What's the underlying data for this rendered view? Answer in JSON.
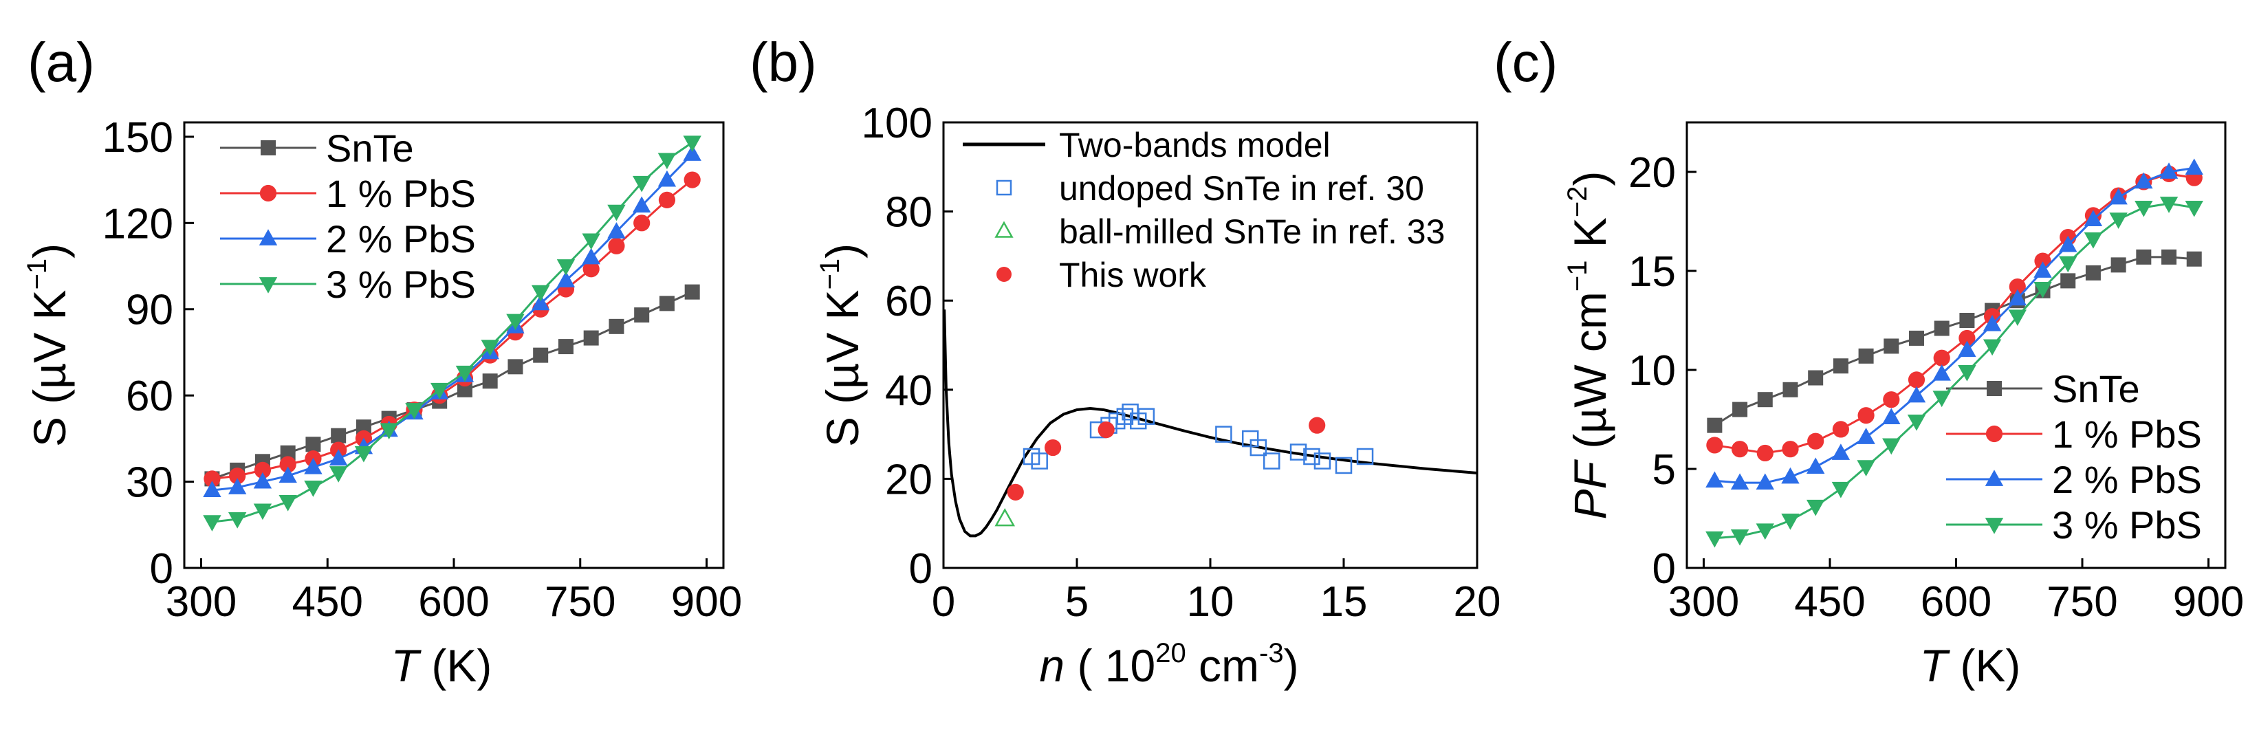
{
  "chart_data": [
    {
      "panel_label": "(a)",
      "type": "line",
      "xlabel_italic": "T",
      "xlabel_rest": " (K)",
      "ylabel_text": "S (µV K",
      "ylabel_sup": "−1",
      "ylabel_close": ")",
      "xlim": [
        280,
        920
      ],
      "ylim": [
        0,
        155
      ],
      "xticks": [
        300,
        450,
        600,
        750,
        900
      ],
      "yticks": [
        0,
        30,
        60,
        90,
        120,
        150
      ],
      "xtick_labels": [
        "300",
        "450",
        "600",
        "750",
        "900"
      ],
      "ytick_labels": [
        "0",
        "30",
        "60",
        "90",
        "120",
        "150"
      ],
      "legend_position": "top-left",
      "x": [
        313,
        343,
        373,
        403,
        433,
        463,
        493,
        523,
        553,
        583,
        613,
        643,
        673,
        703,
        733,
        763,
        793,
        823,
        853,
        883
      ],
      "series": [
        {
          "name": "SnTe",
          "marker": "square",
          "color": "#555555",
          "values": [
            31,
            34,
            37,
            40,
            43,
            46,
            49,
            52,
            55,
            58,
            62,
            65,
            70,
            74,
            77,
            80,
            84,
            88,
            92,
            96
          ]
        },
        {
          "name": "1 % PbS",
          "marker": "circle",
          "color": "#ee3333",
          "values": [
            31,
            32,
            34,
            36,
            38,
            41,
            45,
            50,
            55,
            60,
            66,
            74,
            82,
            90,
            97,
            104,
            112,
            120,
            128,
            135
          ]
        },
        {
          "name": "2 % PbS",
          "marker": "triangle-up",
          "color": "#2b6de8",
          "values": [
            27,
            28,
            30,
            32,
            35,
            38,
            42,
            48,
            54,
            61,
            67,
            75,
            84,
            92,
            100,
            108,
            117,
            126,
            135,
            144
          ]
        },
        {
          "name": "3 % PbS",
          "marker": "triangle-down",
          "color": "#2fb066",
          "values": [
            16,
            17,
            20,
            23,
            28,
            33,
            40,
            48,
            55,
            62,
            68,
            77,
            86,
            96,
            105,
            114,
            124,
            134,
            142,
            148
          ]
        }
      ]
    },
    {
      "panel_label": "(b)",
      "type": "scatter",
      "xlabel_italic": "n",
      "xlabel_rest": " (  10",
      "xlabel_sup1": "20",
      "xlabel_unit": " cm",
      "xlabel_sup2": "-3",
      "xlabel_close": ")",
      "ylabel_text": "S (µV K",
      "ylabel_sup": "−1",
      "ylabel_close": ")",
      "xlim": [
        0,
        20
      ],
      "ylim": [
        0,
        100
      ],
      "xticks": [
        0,
        5,
        10,
        15,
        20
      ],
      "yticks": [
        0,
        20,
        40,
        60,
        80,
        100
      ],
      "xtick_labels": [
        "0",
        "5",
        "10",
        "15",
        "20"
      ],
      "ytick_labels": [
        "0",
        "20",
        "40",
        "60",
        "80",
        "100"
      ],
      "legend_position": "top-right",
      "model": {
        "name": "Two-bands model",
        "color": "#000000",
        "x": [
          0.03,
          0.1,
          0.2,
          0.3,
          0.45,
          0.6,
          0.8,
          1.0,
          1.2,
          1.4,
          1.6,
          1.8,
          2.0,
          2.3,
          2.6,
          3.0,
          3.5,
          4.0,
          4.5,
          5.0,
          5.5,
          6.0,
          6.5,
          7.0,
          8.0,
          9.0,
          10.0,
          11.0,
          12.0,
          13.0,
          14.0,
          15.0,
          16.0,
          17.0,
          18.0,
          19.0,
          20.0
        ],
        "y": [
          58,
          40,
          28,
          21,
          15,
          11,
          8.2,
          7.2,
          7.2,
          7.8,
          9.2,
          11,
          13,
          16.5,
          20,
          24.5,
          29,
          32.5,
          34.5,
          35.5,
          35.8,
          35.5,
          34.8,
          34,
          32.4,
          30.8,
          29.3,
          28,
          26.9,
          25.9,
          25,
          24.2,
          23.5,
          22.9,
          22.3,
          21.8,
          21.3
        ]
      },
      "series": [
        {
          "name": "undoped SnTe in ref. 30",
          "marker": "square-open",
          "color": "#3a7ee0",
          "x": [
            3.3,
            3.6,
            5.8,
            6.2,
            6.5,
            6.8,
            7.0,
            7.3,
            7.6,
            10.5,
            11.5,
            11.8,
            12.3,
            13.3,
            13.8,
            14.2,
            15.0,
            15.8
          ],
          "y": [
            25,
            24,
            31,
            32,
            33,
            34,
            35,
            33,
            34,
            30,
            29,
            27,
            24,
            26,
            25,
            24,
            23,
            25
          ]
        },
        {
          "name": "ball-milled SnTe in ref. 33",
          "marker": "triangle-open",
          "color": "#3dbb5a",
          "x": [
            2.3
          ],
          "y": [
            11
          ]
        },
        {
          "name": "This work",
          "marker": "circle",
          "color": "#ee3333",
          "x": [
            2.7,
            4.1,
            6.1,
            14.0
          ],
          "y": [
            17,
            27,
            31,
            32
          ]
        }
      ]
    },
    {
      "panel_label": "(c)",
      "type": "line",
      "xlabel_italic": "T",
      "xlabel_rest": " (K)",
      "ylabel_italic": "PF",
      "ylabel_text": " (µW cm",
      "ylabel_sup": "−1",
      "ylabel_mid": " K",
      "ylabel_sup2": "−2",
      "ylabel_close": ")",
      "xlim": [
        280,
        920
      ],
      "ylim": [
        0,
        22.5
      ],
      "xticks": [
        300,
        450,
        600,
        750,
        900
      ],
      "yticks": [
        0,
        5,
        10,
        15,
        20
      ],
      "xtick_labels": [
        "300",
        "450",
        "600",
        "750",
        "900"
      ],
      "ytick_labels": [
        "0",
        "5",
        "10",
        "15",
        "20"
      ],
      "legend_position": "bottom-right",
      "x": [
        313,
        343,
        373,
        403,
        433,
        463,
        493,
        523,
        553,
        583,
        613,
        643,
        673,
        703,
        733,
        763,
        793,
        823,
        853,
        883
      ],
      "series": [
        {
          "name": "SnTe",
          "marker": "square",
          "color": "#555555",
          "values": [
            7.2,
            8.0,
            8.5,
            9.0,
            9.6,
            10.2,
            10.7,
            11.2,
            11.6,
            12.1,
            12.5,
            13.0,
            13.5,
            14.0,
            14.5,
            14.9,
            15.3,
            15.7,
            15.7,
            15.6
          ]
        },
        {
          "name": "1 % PbS",
          "marker": "circle",
          "color": "#ee3333",
          "values": [
            6.2,
            6.0,
            5.8,
            6.0,
            6.4,
            7.0,
            7.7,
            8.5,
            9.5,
            10.6,
            11.6,
            12.7,
            14.2,
            15.5,
            16.7,
            17.8,
            18.8,
            19.5,
            19.9,
            19.7
          ]
        },
        {
          "name": "2 % PbS",
          "marker": "triangle-up",
          "color": "#2b6de8",
          "values": [
            4.4,
            4.3,
            4.3,
            4.6,
            5.1,
            5.8,
            6.6,
            7.6,
            8.7,
            9.8,
            11.0,
            12.3,
            13.6,
            15.0,
            16.3,
            17.6,
            18.7,
            19.5,
            20.0,
            20.2
          ]
        },
        {
          "name": "3 % PbS",
          "marker": "triangle-down",
          "color": "#2fb066",
          "values": [
            1.5,
            1.6,
            1.9,
            2.4,
            3.1,
            4.0,
            5.1,
            6.2,
            7.4,
            8.6,
            9.9,
            11.2,
            12.7,
            14.1,
            15.4,
            16.6,
            17.6,
            18.2,
            18.4,
            18.2
          ]
        }
      ]
    }
  ]
}
